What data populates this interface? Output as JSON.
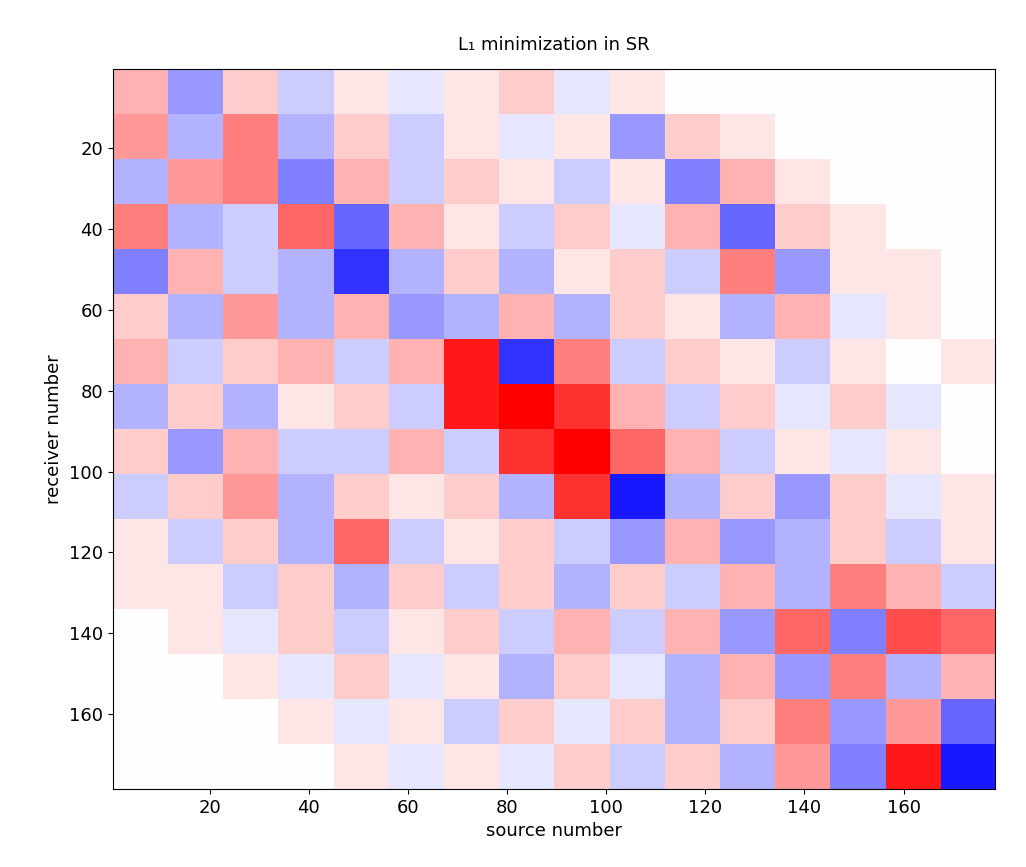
{
  "chart_data": {
    "type": "heatmap",
    "title": "L₁ minimization in SR",
    "x_label": "source number",
    "y_label": "receiver number",
    "xlim": [
      0.5,
      178.5
    ],
    "ylim": [
      178.5,
      0.5
    ],
    "xticks": [
      20,
      40,
      60,
      80,
      100,
      120,
      140,
      160
    ],
    "yticks": [
      20,
      40,
      60,
      80,
      100,
      120,
      140,
      160
    ],
    "value_range": [
      -1,
      1
    ],
    "cells": [
      [
        0.3,
        -0.4,
        0.2,
        -0.2,
        0.1,
        -0.1,
        0.1,
        0.2,
        -0.1,
        0.1,
        0,
        0,
        0,
        0,
        0,
        0
      ],
      [
        0.4,
        -0.3,
        0.5,
        -0.3,
        0.2,
        -0.2,
        0.1,
        -0.1,
        0.1,
        -0.4,
        0.2,
        0.1,
        0,
        0,
        0,
        0
      ],
      [
        -0.3,
        0.4,
        0.5,
        -0.5,
        0.3,
        -0.2,
        0.2,
        0.1,
        -0.2,
        0.1,
        -0.5,
        0.3,
        0.1,
        0,
        0,
        0
      ],
      [
        0.5,
        -0.3,
        -0.2,
        0.6,
        -0.6,
        0.3,
        0.1,
        -0.2,
        0.2,
        -0.1,
        0.3,
        -0.6,
        0.2,
        0.1,
        0,
        0
      ],
      [
        -0.5,
        0.3,
        -0.2,
        -0.3,
        -0.8,
        -0.3,
        0.2,
        -0.3,
        0.1,
        0.2,
        -0.2,
        0.5,
        -0.4,
        0.1,
        0.1,
        0
      ],
      [
        0.2,
        -0.3,
        0.4,
        -0.3,
        0.3,
        -0.4,
        -0.3,
        0.3,
        -0.3,
        0.2,
        0.1,
        -0.3,
        0.3,
        -0.1,
        0.1,
        0
      ],
      [
        0.3,
        -0.2,
        0.2,
        0.3,
        -0.2,
        0.3,
        0.9,
        -0.8,
        0.5,
        -0.2,
        0.2,
        0.1,
        -0.2,
        0.1,
        0,
        0.1
      ],
      [
        -0.3,
        0.2,
        -0.3,
        0.1,
        0.2,
        -0.2,
        0.9,
        1.0,
        0.8,
        0.3,
        -0.2,
        0.2,
        -0.1,
        0.2,
        -0.1,
        0
      ],
      [
        0.2,
        -0.4,
        0.3,
        -0.2,
        -0.2,
        0.3,
        -0.2,
        0.8,
        1.0,
        0.6,
        0.3,
        -0.2,
        0.1,
        -0.1,
        0.1,
        0
      ],
      [
        -0.2,
        0.2,
        0.4,
        -0.3,
        0.2,
        0.1,
        0.2,
        -0.3,
        0.8,
        -0.9,
        -0.3,
        0.2,
        -0.4,
        0.2,
        -0.1,
        0.1
      ],
      [
        0.1,
        -0.2,
        0.2,
        -0.3,
        0.6,
        -0.2,
        0.1,
        0.2,
        -0.2,
        -0.4,
        0.3,
        -0.4,
        -0.3,
        0.2,
        -0.2,
        0.1
      ],
      [
        0.1,
        0.1,
        -0.2,
        0.2,
        -0.3,
        0.2,
        -0.2,
        0.2,
        -0.3,
        0.2,
        -0.2,
        0.3,
        -0.3,
        0.5,
        0.3,
        -0.2
      ],
      [
        0,
        0.1,
        -0.1,
        0.2,
        -0.2,
        0.1,
        0.2,
        -0.2,
        0.3,
        -0.2,
        0.3,
        -0.4,
        0.6,
        -0.5,
        0.7,
        0.6
      ],
      [
        0,
        0,
        0.1,
        -0.1,
        0.2,
        -0.1,
        0.1,
        -0.3,
        0.2,
        -0.1,
        -0.3,
        0.3,
        -0.4,
        0.5,
        -0.3,
        0.3
      ],
      [
        0,
        0,
        0,
        0.1,
        -0.1,
        0.1,
        -0.2,
        0.2,
        -0.1,
        0.2,
        -0.3,
        0.2,
        0.5,
        -0.4,
        0.4,
        -0.6
      ],
      [
        0,
        0,
        0,
        0,
        0.1,
        -0.1,
        0.1,
        -0.1,
        0.2,
        -0.2,
        0.2,
        -0.3,
        0.4,
        -0.5,
        0.9,
        -0.9
      ]
    ]
  }
}
